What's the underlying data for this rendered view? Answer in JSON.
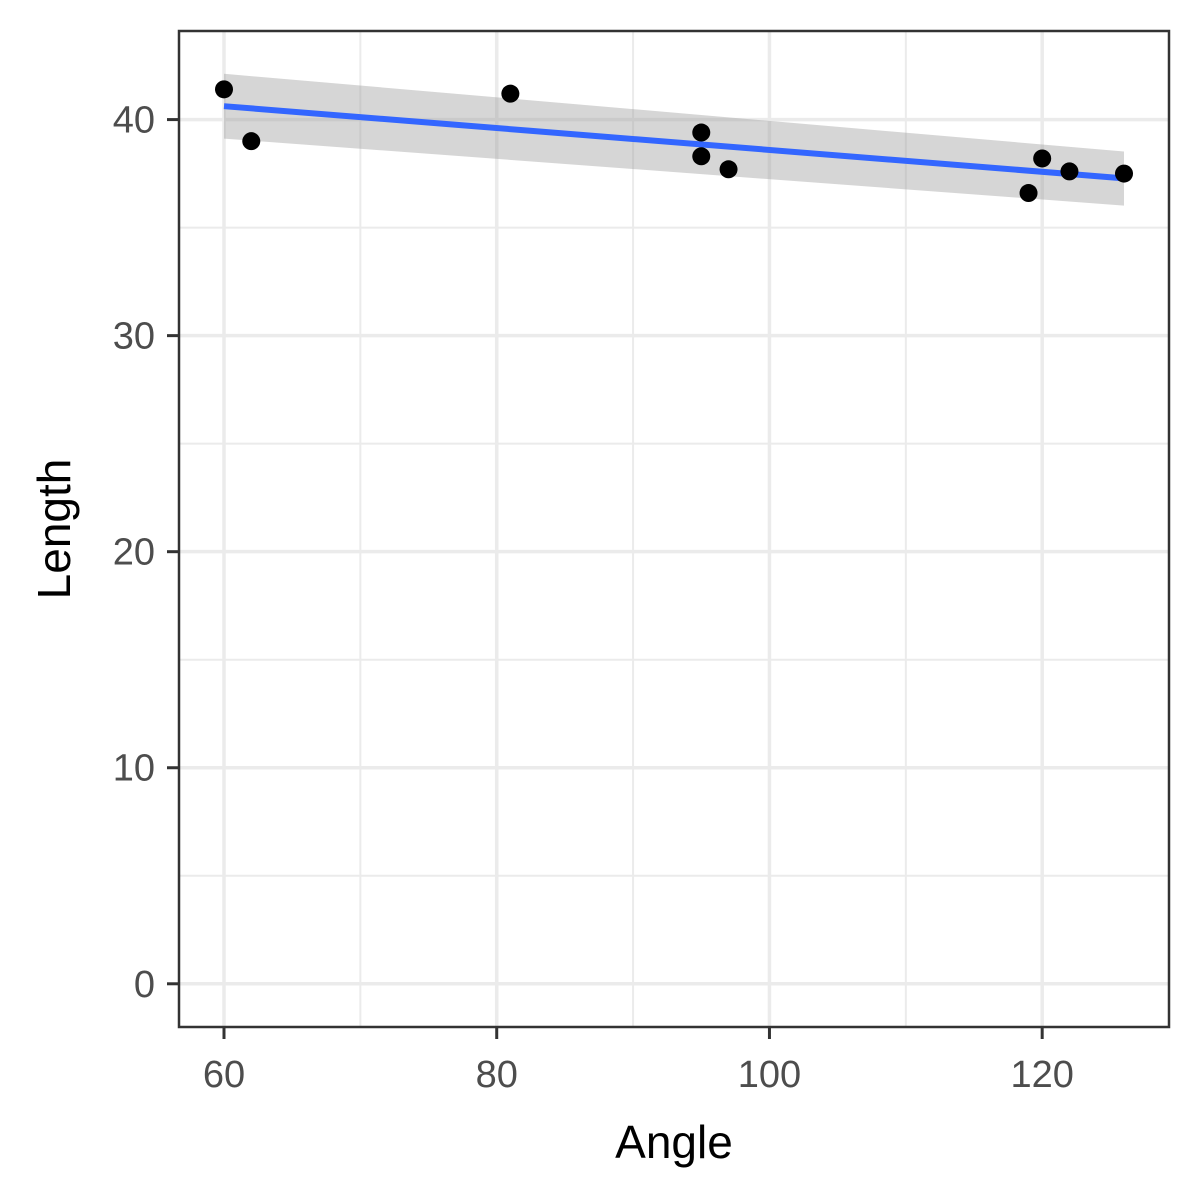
{
  "chart_data": {
    "type": "scatter",
    "xlabel": "Angle",
    "ylabel": "Length",
    "xlim": [
      56.7,
      129.3
    ],
    "ylim": [
      -2.0,
      44.1
    ],
    "x_ticks": [
      60,
      80,
      100,
      120
    ],
    "x_tick_labels": [
      "60",
      "80",
      "100",
      "120"
    ],
    "y_ticks": [
      0,
      10,
      20,
      30,
      40
    ],
    "y_tick_labels": [
      "0",
      "10",
      "20",
      "30",
      "40"
    ],
    "grid": true,
    "theme": "bw",
    "colors": {
      "points": "#000000",
      "fit_line": "#3366ff",
      "confidence_band": "#999999",
      "grid": "#ebebeb",
      "panel_border": "#333333"
    },
    "points": [
      {
        "x": 60,
        "y": 41.4
      },
      {
        "x": 62,
        "y": 39.0
      },
      {
        "x": 81,
        "y": 41.2
      },
      {
        "x": 95,
        "y": 39.4
      },
      {
        "x": 95,
        "y": 38.3
      },
      {
        "x": 97,
        "y": 37.7
      },
      {
        "x": 119,
        "y": 36.6
      },
      {
        "x": 120,
        "y": 38.2
      },
      {
        "x": 122,
        "y": 37.6
      },
      {
        "x": 126,
        "y": 37.5
      }
    ],
    "fit": {
      "method": "linear",
      "x": [
        60,
        126
      ],
      "y": [
        40.62,
        37.28
      ],
      "ci_lower": [
        39.12,
        36.02
      ],
      "ci_upper": [
        42.12,
        38.52
      ]
    }
  }
}
